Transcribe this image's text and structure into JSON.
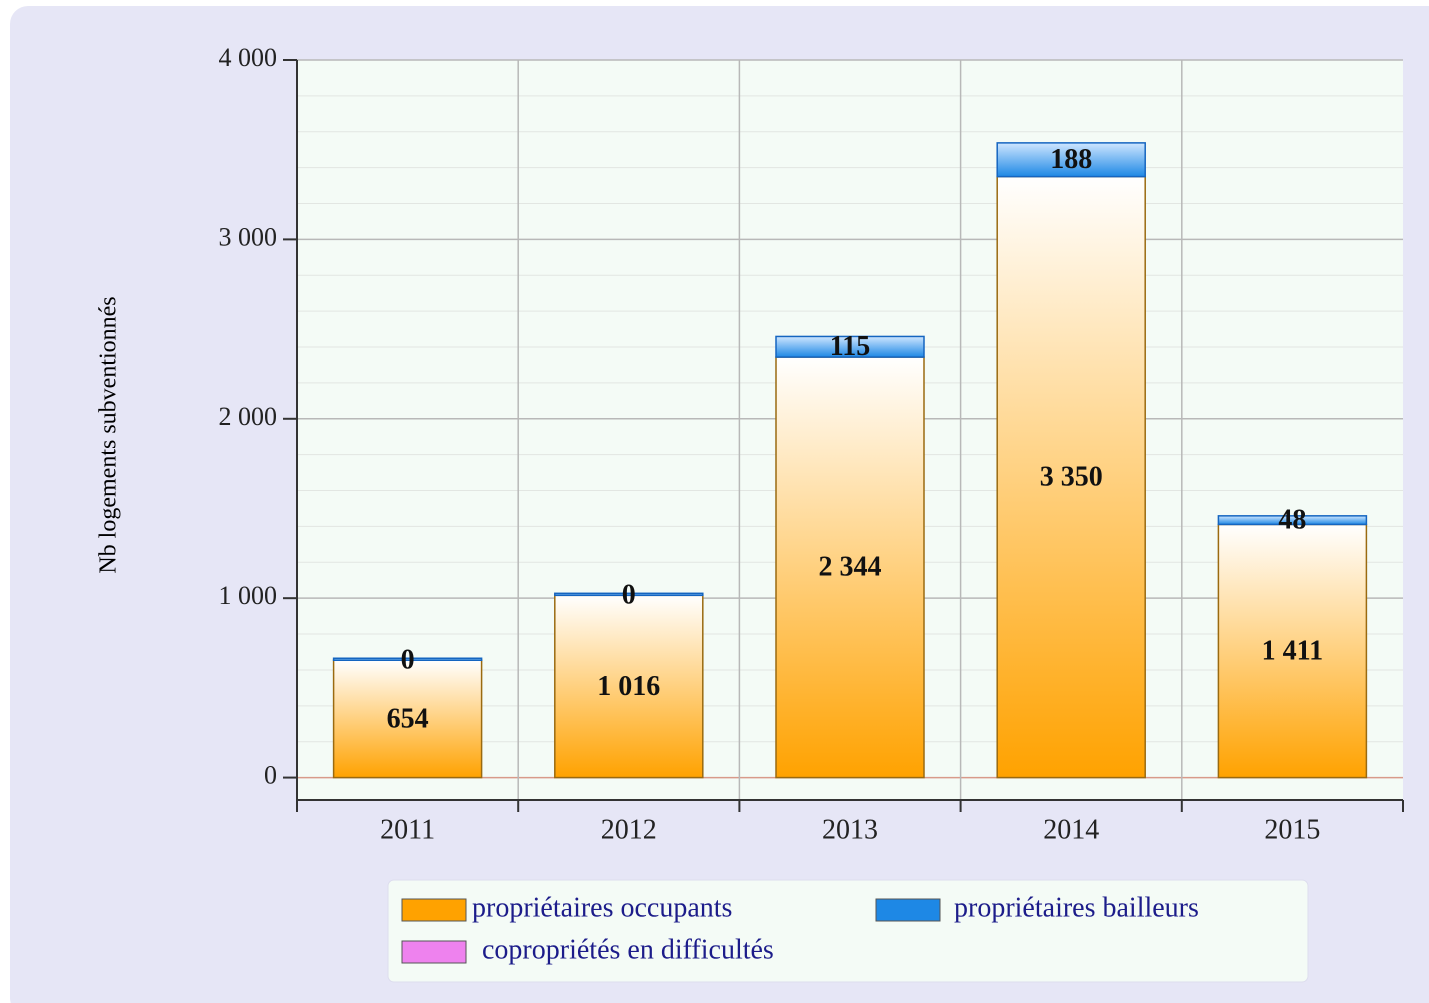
{
  "chart_data": {
    "type": "stacked_bar",
    "y_label": "Nb logements subventionnés",
    "categories": [
      "2011",
      "2012",
      "2013",
      "2014",
      "2015"
    ],
    "series": [
      {
        "name": "propriétaires occupants",
        "color": "#ffa200",
        "values": [
          654,
          1016,
          2344,
          3350,
          1411
        ],
        "value_labels": [
          "654",
          "1 016",
          "2 344",
          "3 350",
          "1 411"
        ]
      },
      {
        "name": "propriétaires bailleurs",
        "color": "#1e88e5",
        "values": [
          0,
          0,
          115,
          188,
          48
        ]
      },
      {
        "name": "copropriétés en difficultés",
        "color": "#ee82ee",
        "values": [
          null,
          null,
          null,
          null,
          null
        ]
      }
    ],
    "ylim": [
      -125,
      4000
    ],
    "yticks": [
      {
        "value": 0,
        "label": "0"
      },
      {
        "value": 1000,
        "label": "1 000"
      },
      {
        "value": 2000,
        "label": "2 000"
      },
      {
        "value": 3000,
        "label": "3 000"
      },
      {
        "value": 4000,
        "label": "4 000"
      }
    ],
    "minor_yticks": [
      200,
      400,
      600,
      800,
      1200,
      1400,
      1600,
      1800,
      2200,
      2400,
      2600,
      2800,
      3200,
      3400,
      3600,
      3800
    ],
    "grid": true,
    "legend": "bottom"
  }
}
